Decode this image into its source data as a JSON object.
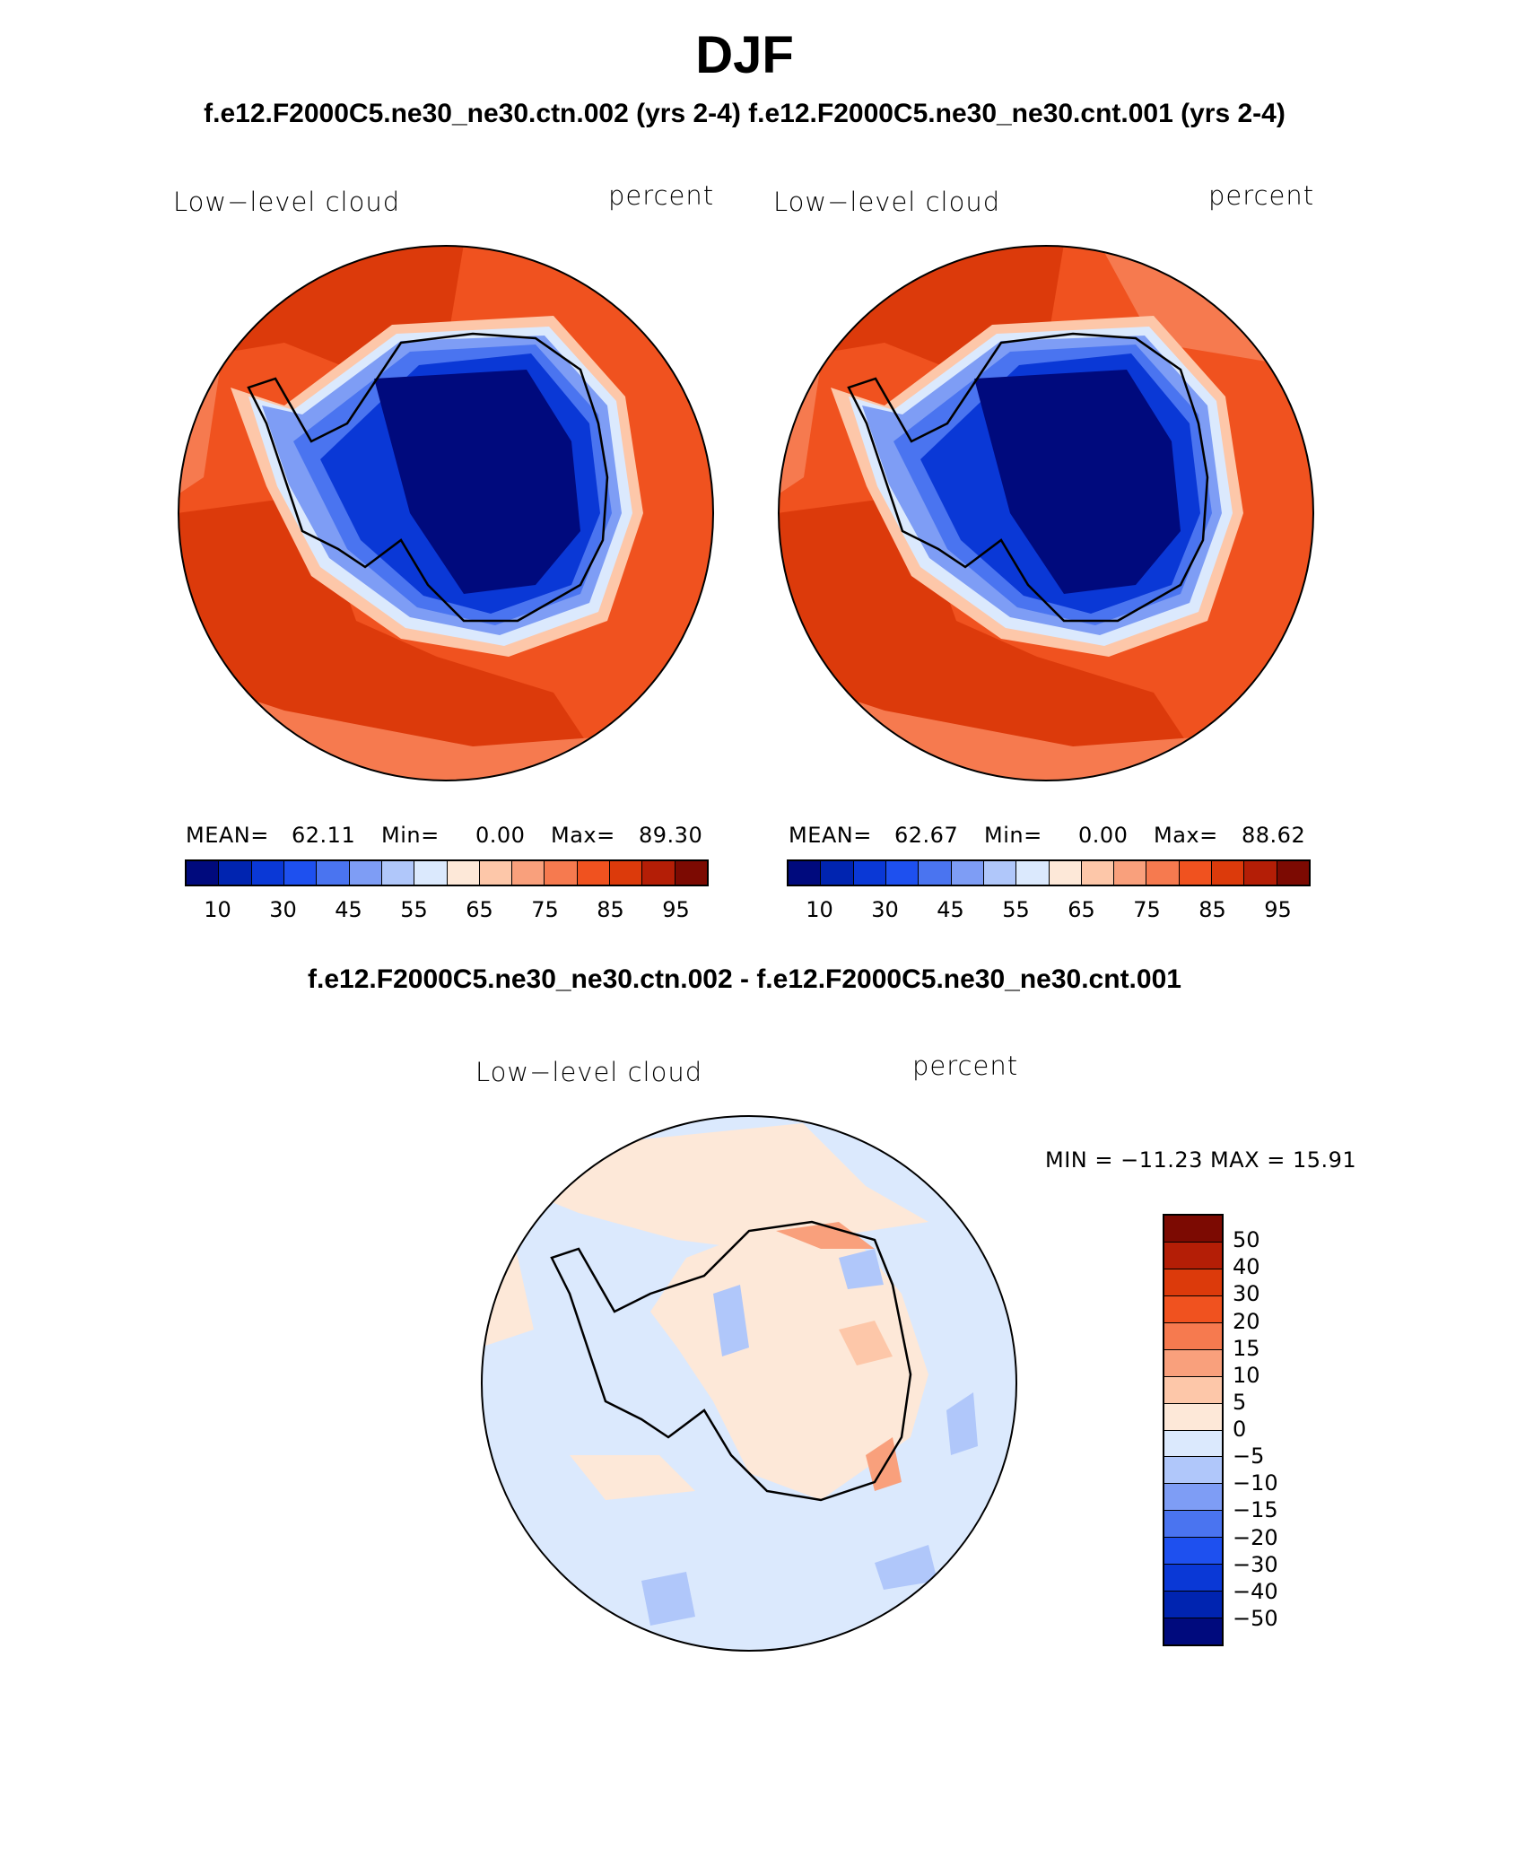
{
  "header": {
    "season": "DJF",
    "subtitle": "f.e12.F2000C5.ne30_ne30.ctn.002 (yrs 2-4) f.e12.F2000C5.ne30_ne30.cnt.001 (yrs 2-4)",
    "diff_title": "f.e12.F2000C5.ne30_ne30.ctn.002 - f.e12.F2000C5.ne30_ne30.cnt.001"
  },
  "panels": [
    {
      "variable": "Low−level cloud",
      "units": "percent",
      "mean_label": "MEAN=",
      "mean_value": "62.11",
      "min_label": "Min=",
      "min_value": "0.00",
      "max_label": "Max=",
      "max_value": "89.30"
    },
    {
      "variable": "Low−level cloud",
      "units": "percent",
      "mean_label": "MEAN=",
      "mean_value": "62.67",
      "min_label": "Min=",
      "min_value": "0.00",
      "max_label": "Max=",
      "max_value": "88.62"
    }
  ],
  "diff_panel": {
    "variable": "Low−level cloud",
    "units": "percent",
    "minmax_text": "MIN = −11.23 MAX =   15.91"
  },
  "abs_colorbar": {
    "colors": [
      "#000a7d",
      "#0024b0",
      "#0a38d6",
      "#1e50ef",
      "#4a74f0",
      "#7e9df5",
      "#b0c7fa",
      "#dbe9fd",
      "#fde8d8",
      "#fdc7a9",
      "#f9a07c",
      "#f67a4f",
      "#f0521f",
      "#dc3a0b",
      "#b41e06",
      "#7c0a02"
    ],
    "tick_labels": [
      "10",
      "30",
      "45",
      "55",
      "65",
      "75",
      "85",
      "95"
    ]
  },
  "diff_colorbar": {
    "colors": [
      "#7c0a02",
      "#b41e06",
      "#dc3a0b",
      "#f0521f",
      "#f67a4f",
      "#f9a07c",
      "#fdc7a9",
      "#fde8d8",
      "#dbe9fd",
      "#b0c7fa",
      "#7e9df5",
      "#4a74f0",
      "#1e50ef",
      "#0a38d6",
      "#0024b0",
      "#000a7d"
    ],
    "tick_labels": [
      "50",
      "40",
      "30",
      "20",
      "15",
      "10",
      "5",
      "0",
      "−5",
      "−10",
      "−15",
      "−20",
      "−30",
      "−40",
      "−50"
    ]
  }
}
